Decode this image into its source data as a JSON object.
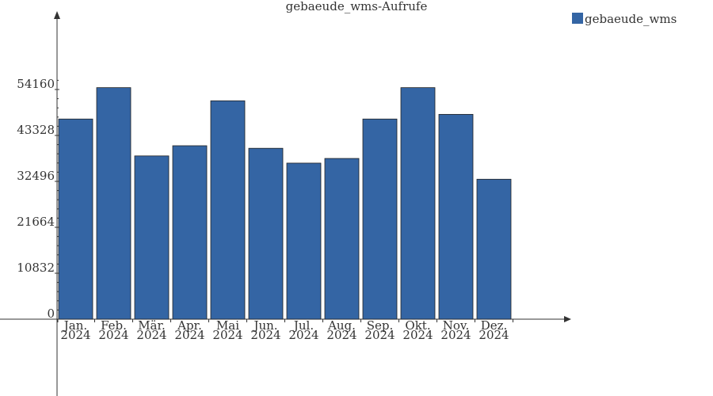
{
  "chart_data": {
    "type": "bar",
    "title": "gebaeude_wms-Aufrufe",
    "xlabel": "",
    "ylabel": "",
    "categories": [
      [
        "Jan.",
        "2024"
      ],
      [
        "Feb.",
        "2024"
      ],
      [
        "Mär.",
        "2024"
      ],
      [
        "Apr.",
        "2024"
      ],
      [
        "Mai",
        "2024"
      ],
      [
        "Jun.",
        "2024"
      ],
      [
        "Jul.",
        "2024"
      ],
      [
        "Aug.",
        "2024"
      ],
      [
        "Sep.",
        "2024"
      ],
      [
        "Okt.",
        "2024"
      ],
      [
        "Nov.",
        "2024"
      ],
      [
        "Dez.",
        "2024"
      ]
    ],
    "series": [
      {
        "name": "gebaeude_wms",
        "color": "#3465a4",
        "values": [
          47200,
          54600,
          38500,
          40900,
          51500,
          40300,
          36800,
          37900,
          47200,
          54600,
          48300,
          33000
        ]
      }
    ],
    "yticks": [
      0,
      10832,
      21664,
      32496,
      43328,
      54160
    ],
    "ylim": [
      0,
      71000
    ],
    "grid": false,
    "legend": "top-right"
  }
}
